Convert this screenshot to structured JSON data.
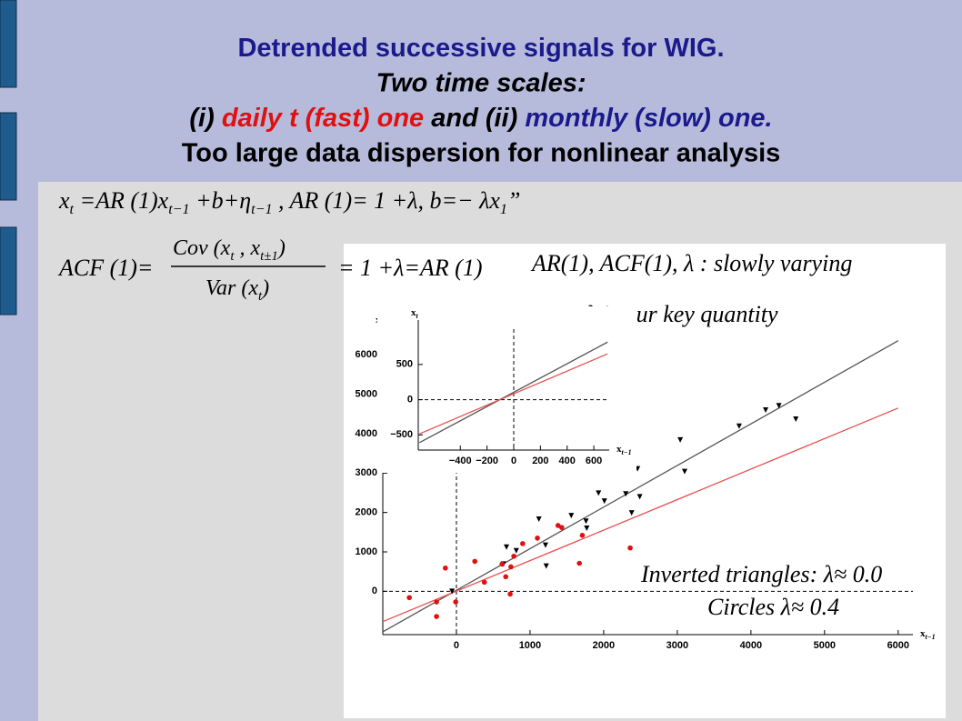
{
  "slide": {
    "title": [
      [
        {
          "text": "Detrended successive signals for WIG.",
          "color": "#1a1a8c"
        }
      ],
      [
        {
          "text": "Two time scales:",
          "color": "#000000",
          "italic": true
        }
      ],
      [
        {
          "text": "(i) ",
          "color": "#000000",
          "italic": true
        },
        {
          "text": "daily t (fast) one",
          "color": "#e01010",
          "italic": true
        },
        {
          "text": " and (ii) ",
          "color": "#000000",
          "italic": true
        },
        {
          "text": "monthly (slow) one.",
          "color": "#1a1a8c",
          "italic": true
        }
      ],
      [
        {
          "text": "Too large data dispersion for nonlinear analysis",
          "color": "#000000"
        }
      ]
    ],
    "formula_1": [
      "x",
      "t",
      " =AR (1)x",
      "t−1",
      " +b+η",
      "t−1",
      " ,    AR (1)= 1 +λ,   b=− λx",
      "1",
      "”"
    ],
    "formula_acf_left": [
      "ACF (1)="
    ],
    "formula_acf_numerator": [
      "Cov (x",
      "t",
      " , x",
      "t±1",
      ")"
    ],
    "formula_acf_denominator": [
      "Var (x",
      "t",
      ")"
    ],
    "formula_acf_right": [
      "= 1 +λ=AR (1)"
    ],
    "note_1": "AR(1), ACF(1), λ :  slowly   varying",
    "note_2": "λ   is   our   key   quantity",
    "note_3": "Inverted  triangles:  λ≈ 0.0",
    "note_4": "Circles  λ≈ 0.4"
  },
  "chart_data": {
    "type": "scatter",
    "xlabel": [
      "x",
      "t−1"
    ],
    "ylabel": [
      "x",
      "t"
    ],
    "xlim": [
      -1000,
      6200
    ],
    "ylim": [
      -1100,
      6700
    ],
    "xticks": [
      0,
      1000,
      2000,
      3000,
      4000,
      5000,
      6000
    ],
    "yticks": [
      0,
      1000,
      2000,
      3000,
      4000,
      5000,
      6000
    ],
    "series": [
      {
        "marker": "triangle-down",
        "color": "#000000",
        "x": [
          680,
          640,
          813,
          1120,
          1210,
          1560,
          1760,
          1770,
          1930,
          2010,
          1220,
          2300,
          2380,
          2460,
          2490,
          3040,
          3100,
          3840,
          4200,
          4380,
          4610,
          -60
        ],
        "values": [
          1120,
          690,
          1030,
          1830,
          1170,
          1920,
          1780,
          1600,
          2490,
          2290,
          640,
          2470,
          1990,
          3110,
          2400,
          3840,
          3040,
          4190,
          4600,
          4710,
          4370,
          0
        ]
      },
      {
        "marker": "circle",
        "color": "#e01010",
        "x": [
          -640,
          -270,
          -270,
          -150,
          -10,
          250,
          380,
          620,
          670,
          730,
          740,
          780,
          900,
          1100,
          1380,
          1430,
          1670,
          1710,
          2360
        ],
        "values": [
          -160,
          -270,
          -640,
          590,
          -270,
          760,
          230,
          690,
          370,
          -70,
          620,
          890,
          1210,
          1350,
          1670,
          1620,
          710,
          1420,
          1100
        ]
      }
    ],
    "lines": [
      {
        "color": "#555555",
        "x": [
          -1000,
          6000
        ],
        "values": [
          -1030,
          6360
        ]
      },
      {
        "color": "#e85050",
        "x": [
          -1000,
          6000
        ],
        "values": [
          -770,
          4650
        ]
      }
    ],
    "inset": {
      "xlabel": [
        "x",
        "t−1"
      ],
      "ylabel": [
        "x",
        "t"
      ],
      "xlim": [
        -715,
        715
      ],
      "ylim": [
        -715,
        1130
      ],
      "xticks": [
        {
          "value": -400,
          "label": "−400"
        },
        {
          "value": -200,
          "label": "−200"
        },
        0,
        200,
        400,
        600
      ],
      "yticks": [
        {
          "value": -500,
          "label": "−500"
        },
        0,
        500
      ],
      "lines": [
        {
          "color": "#555555",
          "x": [
            -706,
            703
          ],
          "values": [
            -610,
            817
          ]
        },
        {
          "color": "#e85050",
          "x": [
            -706,
            703
          ],
          "values": [
            -485,
            650
          ]
        }
      ]
    }
  }
}
